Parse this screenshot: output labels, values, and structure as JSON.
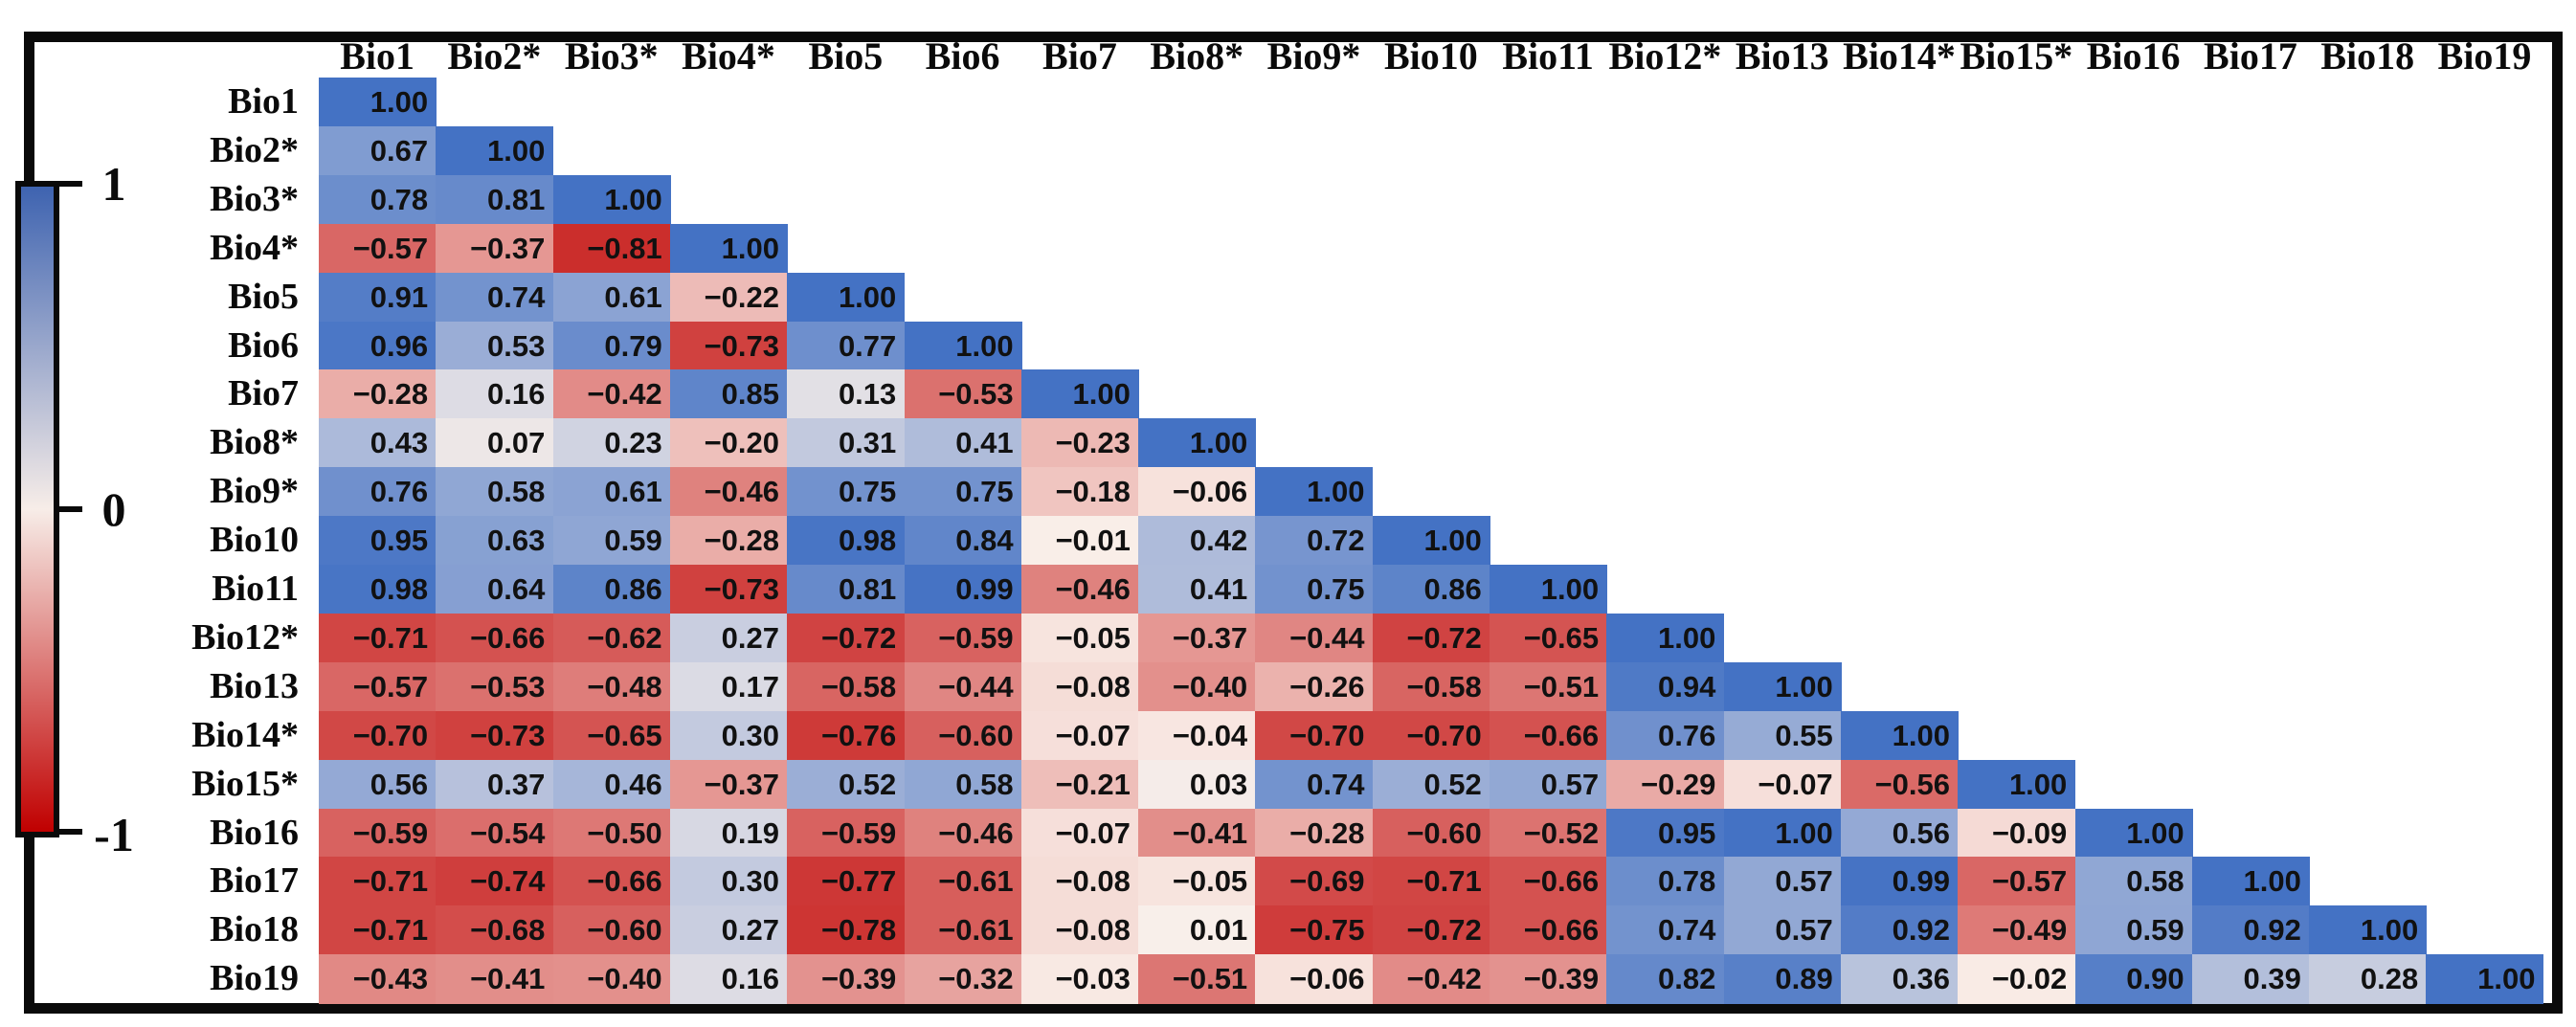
{
  "figure": {
    "background": "#FFFFFF",
    "frame_color": "#0A0A0A",
    "colorbar": {
      "tick_labels": {
        "top": "1",
        "mid": "0",
        "bottom": "-1"
      },
      "max": 1,
      "mid": 0,
      "min": -1,
      "top_color": "#3E63B0",
      "mid_color": "#F7EDE8",
      "bottom_color": "#C00000"
    }
  },
  "chart_data": {
    "type": "heatmap",
    "subtype": "correlation-matrix-lower-triangle",
    "title": "",
    "legend_position": "left",
    "value_range": [
      -1,
      1
    ],
    "colorscale": {
      "negative": "#C00000",
      "zero": "#FAF0EA",
      "positive": "#4472C4"
    },
    "text_color": "#111111",
    "variables": [
      "Bio1",
      "Bio2*",
      "Bio3*",
      "Bio4*",
      "Bio5",
      "Bio6",
      "Bio7",
      "Bio8*",
      "Bio9*",
      "Bio10",
      "Bio11",
      "Bio12*",
      "Bio13",
      "Bio14*",
      "Bio15*",
      "Bio16",
      "Bio17",
      "Bio18",
      "Bio19"
    ],
    "matrix_lower_triangle": [
      [
        1.0
      ],
      [
        0.67,
        1.0
      ],
      [
        0.78,
        0.81,
        1.0
      ],
      [
        -0.57,
        -0.37,
        -0.81,
        1.0
      ],
      [
        0.91,
        0.74,
        0.61,
        -0.22,
        1.0
      ],
      [
        0.96,
        0.53,
        0.79,
        -0.73,
        0.77,
        1.0
      ],
      [
        -0.28,
        0.16,
        -0.42,
        0.85,
        0.13,
        -0.53,
        1.0
      ],
      [
        0.43,
        0.07,
        0.23,
        -0.2,
        0.31,
        0.41,
        -0.23,
        1.0
      ],
      [
        0.76,
        0.58,
        0.61,
        -0.46,
        0.75,
        0.75,
        -0.18,
        -0.06,
        1.0
      ],
      [
        0.95,
        0.63,
        0.59,
        -0.28,
        0.98,
        0.84,
        -0.01,
        0.42,
        0.72,
        1.0
      ],
      [
        0.98,
        0.64,
        0.86,
        -0.73,
        0.81,
        0.99,
        -0.46,
        0.41,
        0.75,
        0.86,
        1.0
      ],
      [
        -0.71,
        -0.66,
        -0.62,
        0.27,
        -0.72,
        -0.59,
        -0.05,
        -0.37,
        -0.44,
        -0.72,
        -0.65,
        1.0
      ],
      [
        -0.57,
        -0.53,
        -0.48,
        0.17,
        -0.58,
        -0.44,
        -0.08,
        -0.4,
        -0.26,
        -0.58,
        -0.51,
        0.94,
        1.0
      ],
      [
        -0.7,
        -0.73,
        -0.65,
        0.3,
        -0.76,
        -0.6,
        -0.07,
        -0.04,
        -0.7,
        -0.7,
        -0.66,
        0.76,
        0.55,
        1.0
      ],
      [
        0.56,
        0.37,
        0.46,
        -0.37,
        0.52,
        0.58,
        -0.21,
        0.03,
        0.74,
        0.52,
        0.57,
        -0.29,
        -0.07,
        -0.56,
        1.0
      ],
      [
        -0.59,
        -0.54,
        -0.5,
        0.19,
        -0.59,
        -0.46,
        -0.07,
        -0.41,
        -0.28,
        -0.6,
        -0.52,
        0.95,
        1.0,
        0.56,
        -0.09,
        1.0
      ],
      [
        -0.71,
        -0.74,
        -0.66,
        0.3,
        -0.77,
        -0.61,
        -0.08,
        -0.05,
        -0.69,
        -0.71,
        -0.66,
        0.78,
        0.57,
        0.99,
        -0.57,
        0.58,
        1.0
      ],
      [
        -0.71,
        -0.68,
        -0.6,
        0.27,
        -0.78,
        -0.61,
        -0.08,
        0.01,
        -0.75,
        -0.72,
        -0.66,
        0.74,
        0.57,
        0.92,
        -0.49,
        0.59,
        0.92,
        1.0
      ],
      [
        -0.43,
        -0.41,
        -0.4,
        0.16,
        -0.39,
        -0.32,
        -0.03,
        -0.51,
        -0.06,
        -0.42,
        -0.39,
        0.82,
        0.89,
        0.36,
        -0.02,
        0.9,
        0.39,
        0.28,
        1.0
      ]
    ]
  }
}
